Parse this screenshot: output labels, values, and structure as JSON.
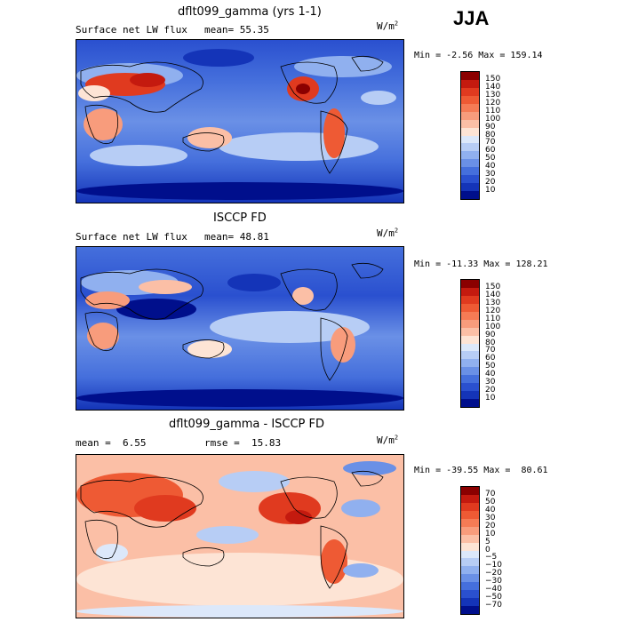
{
  "season": "JJA",
  "units_base": "W/m",
  "units_exp": "2",
  "panels": [
    {
      "title": "dflt099_gamma (yrs 1-1)",
      "variable": "Surface net LW flux",
      "mean_label": "mean=",
      "mean": "55.35",
      "min_label": "Min =",
      "min": "-2.56",
      "max_label": "Max =",
      "max": "159.14",
      "levels": [
        "150",
        "140",
        "130",
        "120",
        "110",
        "100",
        "90",
        "80",
        "70",
        "60",
        "50",
        "40",
        "30",
        "20",
        "10"
      ],
      "colors": [
        "#8b0000",
        "#c41a0f",
        "#e03a1f",
        "#ee5a34",
        "#f57b55",
        "#f89c7c",
        "#fbbfa6",
        "#fde4d5",
        "#dce8fa",
        "#b7cdf5",
        "#90b0ef",
        "#6a90e6",
        "#456fdc",
        "#2a50cf",
        "#1434b8",
        "#000f8c"
      ]
    },
    {
      "title": "ISCCP FD",
      "variable": "Surface net LW flux",
      "mean_label": "mean=",
      "mean": "48.81",
      "min_label": "Min =",
      "min": "-11.33",
      "max_label": "Max =",
      "max": "128.21",
      "levels": [
        "150",
        "140",
        "130",
        "120",
        "110",
        "100",
        "90",
        "80",
        "70",
        "60",
        "50",
        "40",
        "30",
        "20",
        "10"
      ],
      "colors": [
        "#8b0000",
        "#c41a0f",
        "#e03a1f",
        "#ee5a34",
        "#f57b55",
        "#f89c7c",
        "#fbbfa6",
        "#fde4d5",
        "#dce8fa",
        "#b7cdf5",
        "#90b0ef",
        "#6a90e6",
        "#456fdc",
        "#2a50cf",
        "#1434b8",
        "#000f8c"
      ]
    },
    {
      "title": "dflt099_gamma - ISCCP FD",
      "mean_label": "mean =",
      "mean": "6.55",
      "rmse_label": "rmse =",
      "rmse": "15.83",
      "min_label": "Min =",
      "min": "-39.55",
      "max_label": "Max =",
      "max": "80.61",
      "levels": [
        "70",
        "50",
        "40",
        "30",
        "20",
        "10",
        "5",
        "0",
        "−5",
        "−10",
        "−20",
        "−30",
        "−40",
        "−50",
        "−70"
      ],
      "colors": [
        "#8b0000",
        "#c41a0f",
        "#e03a1f",
        "#ee5a34",
        "#f57b55",
        "#f89c7c",
        "#fbbfa6",
        "#fde4d5",
        "#dce8fa",
        "#b7cdf5",
        "#90b0ef",
        "#6a90e6",
        "#456fdc",
        "#2a50cf",
        "#1434b8",
        "#000f8c"
      ]
    }
  ]
}
